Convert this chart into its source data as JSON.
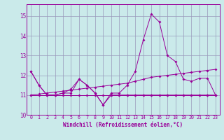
{
  "xlabel": "Windchill (Refroidissement éolien,°C)",
  "bg_color": "#caeaea",
  "grid_color": "#9999bb",
  "line_color": "#990099",
  "xlim": [
    -0.5,
    23.5
  ],
  "ylim": [
    10.0,
    15.6
  ],
  "yticks": [
    10,
    11,
    12,
    13,
    14,
    15
  ],
  "xticks": [
    0,
    1,
    2,
    3,
    4,
    5,
    6,
    7,
    8,
    9,
    10,
    11,
    12,
    13,
    14,
    15,
    16,
    17,
    18,
    19,
    20,
    21,
    22,
    23
  ],
  "series": [
    {
      "x": [
        0,
        1,
        2,
        3,
        4,
        5,
        6,
        7,
        8,
        9,
        10,
        11,
        12,
        13,
        14,
        15,
        16,
        17,
        18,
        19,
        20,
        21,
        22,
        23
      ],
      "y": [
        12.2,
        11.5,
        11.0,
        11.0,
        11.1,
        11.1,
        11.8,
        11.5,
        11.1,
        10.5,
        11.0,
        11.0,
        11.0,
        11.0,
        11.0,
        11.0,
        11.0,
        11.0,
        11.0,
        11.0,
        11.0,
        11.0,
        11.0,
        11.0
      ]
    },
    {
      "x": [
        0,
        1,
        2,
        3,
        4,
        5,
        6,
        7,
        8,
        9,
        10,
        11,
        12,
        13,
        14,
        15,
        16,
        17,
        18,
        19,
        20,
        21,
        22,
        23
      ],
      "y": [
        12.2,
        11.5,
        11.0,
        11.0,
        11.1,
        11.3,
        11.8,
        11.5,
        11.1,
        10.5,
        11.1,
        11.1,
        11.5,
        12.2,
        13.8,
        15.1,
        14.7,
        13.0,
        12.7,
        11.8,
        11.7,
        11.85,
        11.85,
        11.0
      ]
    },
    {
      "x": [
        0,
        1,
        2,
        3,
        4,
        5,
        6,
        7,
        8,
        9,
        10,
        11,
        12,
        13,
        14,
        15,
        16,
        17,
        18,
        19,
        20,
        21,
        22,
        23
      ],
      "y": [
        11.0,
        11.05,
        11.1,
        11.15,
        11.2,
        11.25,
        11.3,
        11.35,
        11.4,
        11.45,
        11.5,
        11.55,
        11.6,
        11.7,
        11.8,
        11.9,
        11.95,
        12.0,
        12.05,
        12.1,
        12.15,
        12.2,
        12.25,
        12.3
      ]
    },
    {
      "x": [
        0,
        1,
        2,
        3,
        4,
        5,
        6,
        7,
        8,
        9,
        10,
        11,
        12,
        13,
        14,
        15,
        16,
        17,
        18,
        19,
        20,
        21,
        22,
        23
      ],
      "y": [
        11.0,
        11.0,
        11.0,
        11.0,
        11.0,
        11.0,
        11.0,
        11.0,
        11.0,
        11.0,
        11.0,
        11.0,
        11.0,
        11.0,
        11.0,
        11.0,
        11.0,
        11.0,
        11.0,
        11.0,
        11.0,
        11.0,
        11.0,
        11.0
      ]
    }
  ]
}
